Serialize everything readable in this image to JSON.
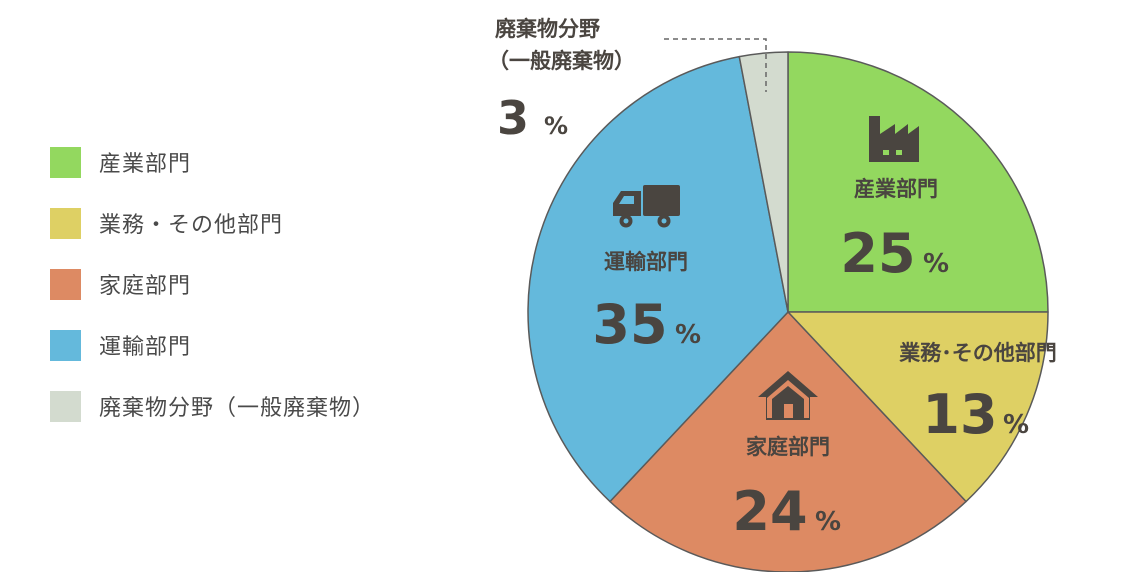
{
  "chart_data": {
    "type": "pie",
    "title": "",
    "start_angle_deg": 0,
    "direction": "clockwise",
    "slices": [
      {
        "name": "産業部門",
        "label": "産業部門",
        "value": 25,
        "percent_label": "25",
        "color": "#93d85f",
        "icon": "factory-icon"
      },
      {
        "name": "業務・その他部門",
        "label": "業務･その他部門",
        "value": 13,
        "percent_label": "13",
        "color": "#ded064",
        "icon": ""
      },
      {
        "name": "家庭部門",
        "label": "家庭部門",
        "value": 24,
        "percent_label": "24",
        "color": "#dd8a63",
        "icon": "house-icon"
      },
      {
        "name": "運輸部門",
        "label": "運輸部門",
        "value": 35,
        "percent_label": "35",
        "color": "#64b9dc",
        "icon": "truck-icon"
      },
      {
        "name": "廃棄物分野（一般廃棄物）",
        "label_line1": "廃棄物分野",
        "label_line2": "（一般廃棄物）",
        "value": 3,
        "percent_label": "3",
        "color": "#d3dbcf",
        "icon": ""
      }
    ],
    "percent_unit": "%",
    "legend": {
      "placement": "left",
      "items": [
        {
          "label": "産業部門",
          "color": "#93d85f"
        },
        {
          "label": "業務・その他部門",
          "color": "#ded064"
        },
        {
          "label": "家庭部門",
          "color": "#dd8a63"
        },
        {
          "label": "運輸部門",
          "color": "#64b9dc"
        },
        {
          "label": "廃棄物分野（一般廃棄物）",
          "color": "#d3dbcf"
        }
      ]
    }
  }
}
